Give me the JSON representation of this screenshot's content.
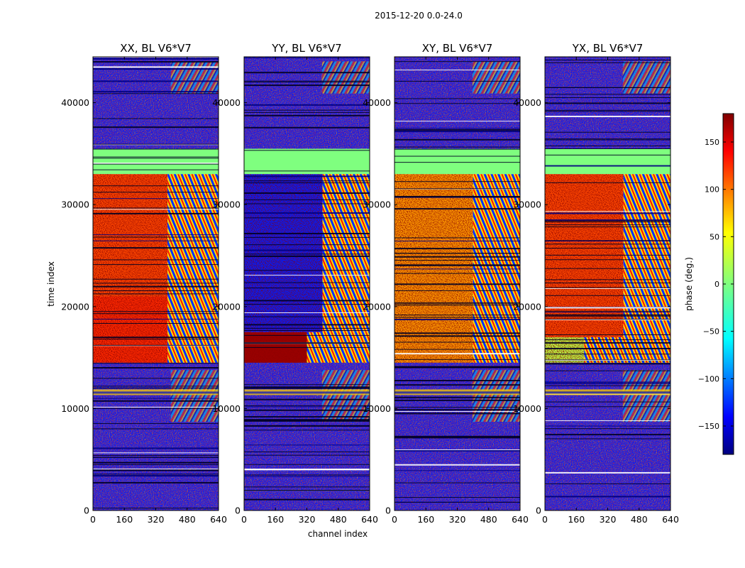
{
  "chart_data": {
    "type": "heatmap",
    "suptitle": "2015-12-20 0.0-24.0",
    "xlabel": "channel index",
    "ylabel": "time index",
    "xlim": [
      0,
      640
    ],
    "ylim": [
      0,
      44500
    ],
    "xticks": [
      0,
      160,
      320,
      480,
      640
    ],
    "xtick_labels": [
      "0",
      "160",
      "320",
      "480",
      "640"
    ],
    "yticks": [
      0,
      10000,
      20000,
      30000,
      40000
    ],
    "ytick_labels": [
      "0",
      "10000",
      "20000",
      "30000",
      "40000"
    ],
    "colorbar": {
      "label": "phase (deg.)",
      "range": [
        -180,
        180
      ],
      "ticks": [
        150,
        100,
        50,
        0,
        -50,
        -100,
        -150
      ],
      "tick_labels": [
        "150",
        "100",
        "50",
        "0",
        "−50",
        "−100",
        "−150"
      ],
      "colormap": "jet",
      "colors": [
        "#00007f",
        "#0000ff",
        "#007fff",
        "#00ffff",
        "#7fff7f",
        "#ffff00",
        "#ff7f00",
        "#ff0000",
        "#7f0000"
      ]
    },
    "flagged_time_ranges": [
      [
        33000,
        35500
      ]
    ],
    "flagged_color": "#7fff7f",
    "panels": [
      {
        "title": "XX, BL V6*V7",
        "time_segments": [
          {
            "t": [
              0,
              14500
            ],
            "phase": null
          },
          {
            "t": [
              14500,
              21000
            ],
            "phase": 120,
            "smooth_upto_channel": 380
          },
          {
            "t": [
              21000,
              33000
            ],
            "phase": 110,
            "smooth_upto_channel": 380
          },
          {
            "t": [
              33000,
              35500
            ],
            "phase": 0
          },
          {
            "t": [
              35500,
              44500
            ],
            "phase": null
          }
        ]
      },
      {
        "title": "YY, BL V6*V7",
        "time_segments": [
          {
            "t": [
              0,
              14500
            ],
            "phase": null
          },
          {
            "t": [
              14500,
              17500
            ],
            "phase": 170,
            "smooth_upto_channel": 320
          },
          {
            "t": [
              17500,
              33000
            ],
            "phase": -125,
            "smooth_upto_channel": 400
          },
          {
            "t": [
              33000,
              35500
            ],
            "phase": 0
          },
          {
            "t": [
              35500,
              44500
            ],
            "phase": null
          }
        ]
      },
      {
        "title": "XY, BL V6*V7",
        "time_segments": [
          {
            "t": [
              0,
              14500
            ],
            "phase": null
          },
          {
            "t": [
              14500,
              33000
            ],
            "phase": 80,
            "smooth_upto_channel": 400
          },
          {
            "t": [
              33000,
              35500
            ],
            "phase": 0
          },
          {
            "t": [
              35500,
              44500
            ],
            "phase": null
          }
        ]
      },
      {
        "title": "YX, BL V6*V7",
        "time_segments": [
          {
            "t": [
              0,
              14500
            ],
            "phase": null
          },
          {
            "t": [
              14500,
              17000
            ],
            "phase": 20,
            "smooth_upto_channel": 200
          },
          {
            "t": [
              17000,
              33000
            ],
            "phase": 110,
            "smooth_upto_channel": 400
          },
          {
            "t": [
              33000,
              35500
            ],
            "phase": 0
          },
          {
            "t": [
              35500,
              44500
            ],
            "phase": null
          }
        ]
      }
    ]
  }
}
